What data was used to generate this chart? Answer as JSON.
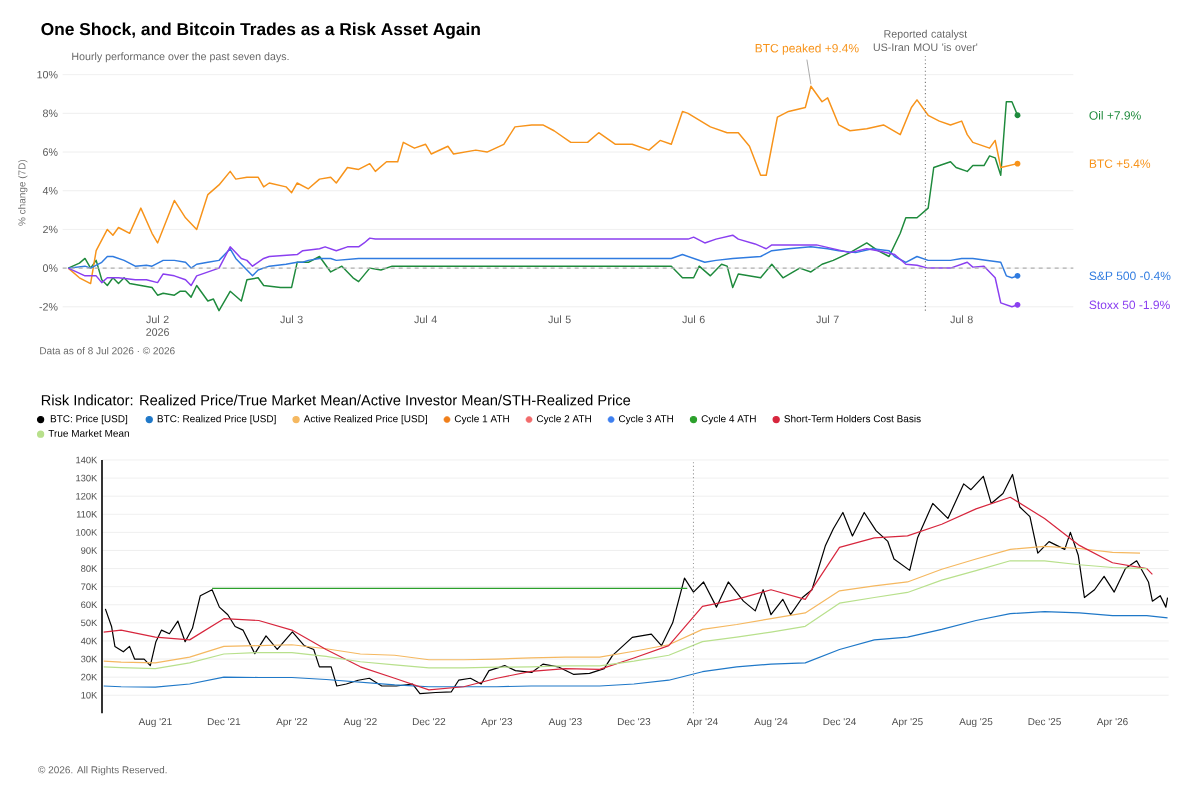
{
  "chart_data": [
    {
      "type": "line",
      "title": "One Shock, and Bitcoin Trades as a Risk Asset Again",
      "subtitle": "Hourly performance over the past seven days.",
      "ylabel": "% change (7D)",
      "xlim": [
        "2026-07-01T07:00",
        "2026-07-08T20:00"
      ],
      "ylim": [
        -2.2,
        10
      ],
      "xticks": [
        {
          "value": "2026-07-02",
          "label": "Jul 2 2026"
        },
        {
          "value": "2026-07-03",
          "label": "Jul 3"
        },
        {
          "value": "2026-07-04",
          "label": "Jul 4"
        },
        {
          "value": "2026-07-05",
          "label": "Jul 5"
        },
        {
          "value": "2026-07-06",
          "label": "Jul 6"
        },
        {
          "value": "2026-07-07",
          "label": "Jul 7"
        },
        {
          "value": "2026-07-08",
          "label": "Jul 8"
        }
      ],
      "yticks": [
        {
          "value": -2,
          "label": "-2%"
        },
        {
          "value": 0,
          "label": "0%"
        },
        {
          "value": 2,
          "label": "2%"
        },
        {
          "value": 4,
          "label": "4%"
        },
        {
          "value": 6,
          "label": "6%"
        },
        {
          "value": 8,
          "label": "8%"
        },
        {
          "value": 10,
          "label": "10%"
        }
      ],
      "grid": "y",
      "legend": false,
      "series": [
        {
          "name": "Oil +7.9%",
          "color": "#1e8a3c",
          "x": [
            "2026-07-01T08:00",
            "2026-07-01T10:00",
            "2026-07-01T11:00",
            "2026-07-01T12:00",
            "2026-07-01T13:00",
            "2026-07-01T14:00",
            "2026-07-01T15:00",
            "2026-07-01T16:00",
            "2026-07-01T17:00",
            "2026-07-01T18:00",
            "2026-07-01T19:00",
            "2026-07-01T21:00",
            "2026-07-01T23:00",
            "2026-07-02T00:00",
            "2026-07-02T01:00",
            "2026-07-02T03:00",
            "2026-07-02T04:00",
            "2026-07-02T05:00",
            "2026-07-02T06:00",
            "2026-07-02T07:00",
            "2026-07-02T09:00",
            "2026-07-02T10:00",
            "2026-07-02T11:00",
            "2026-07-02T13:00",
            "2026-07-02T15:00",
            "2026-07-02T16:00",
            "2026-07-02T18:00",
            "2026-07-02T19:00",
            "2026-07-02T22:00",
            "2026-07-03T00:00",
            "2026-07-03T01:00",
            "2026-07-03T03:00",
            "2026-07-03T05:00",
            "2026-07-03T07:00",
            "2026-07-03T09:00",
            "2026-07-03T11:00",
            "2026-07-03T12:00",
            "2026-07-03T14:00",
            "2026-07-03T16:00",
            "2026-07-03T18:00",
            "2026-07-05T20:00",
            "2026-07-05T22:00",
            "2026-07-06T00:00",
            "2026-07-06T01:00",
            "2026-07-06T03:00",
            "2026-07-06T05:00",
            "2026-07-06T06:00",
            "2026-07-06T07:00",
            "2026-07-06T08:00",
            "2026-07-06T10:00",
            "2026-07-06T12:00",
            "2026-07-06T14:00",
            "2026-07-06T16:00",
            "2026-07-06T19:00",
            "2026-07-06T21:00",
            "2026-07-06T23:00",
            "2026-07-07T01:00",
            "2026-07-07T04:00",
            "2026-07-07T07:00",
            "2026-07-07T09:00",
            "2026-07-07T11:00",
            "2026-07-07T13:00",
            "2026-07-07T14:00",
            "2026-07-07T16:00",
            "2026-07-07T18:00",
            "2026-07-07T19:00",
            "2026-07-07T20:00",
            "2026-07-07T22:00",
            "2026-07-07T23:00",
            "2026-07-08T01:00",
            "2026-07-08T02:00",
            "2026-07-08T04:00",
            "2026-07-08T05:00",
            "2026-07-08T06:00",
            "2026-07-08T07:00",
            "2026-07-08T08:00",
            "2026-07-08T09:00",
            "2026-07-08T10:00"
          ],
          "values": [
            0,
            0.26,
            0.5,
            0,
            0.4,
            -0.6,
            -0.9,
            -0.5,
            -0.8,
            -0.5,
            -0.8,
            -0.9,
            -1.0,
            -1.4,
            -1.3,
            -1.4,
            -1.2,
            -1.2,
            -1.5,
            -0.9,
            -1.7,
            -1.6,
            -2.2,
            -1.2,
            -1.7,
            -0.6,
            -0.5,
            -0.9,
            -1.0,
            -1.0,
            0.3,
            0.3,
            0.6,
            -0.2,
            0.1,
            -0.5,
            -0.7,
            0,
            -0.1,
            0.1,
            0.1,
            -0.5,
            -0.5,
            0.1,
            -0.4,
            0.2,
            0.1,
            -1.0,
            -0.3,
            -0.4,
            -0.5,
            0.2,
            -0.5,
            0.0,
            -0.2,
            0.2,
            0.4,
            0.8,
            1.3,
            0.9,
            0.6,
            1.8,
            2.6,
            2.6,
            3.1,
            5.2,
            5.3,
            5.5,
            5.2,
            5.0,
            5.3,
            5.3,
            5.8,
            5.7,
            4.8,
            8.6,
            8.6,
            7.9
          ]
        },
        {
          "name": "BTC +5.4%",
          "color": "#f7931a",
          "x": [
            "2026-07-01T08:00",
            "2026-07-01T10:00",
            "2026-07-01T12:00",
            "2026-07-01T13:00",
            "2026-07-01T15:00",
            "2026-07-01T16:00",
            "2026-07-01T17:00",
            "2026-07-01T19:00",
            "2026-07-01T21:00",
            "2026-07-01T23:00",
            "2026-07-02T00:00",
            "2026-07-02T03:00",
            "2026-07-02T05:00",
            "2026-07-02T07:00",
            "2026-07-02T09:00",
            "2026-07-02T11:00",
            "2026-07-02T13:00",
            "2026-07-02T14:00",
            "2026-07-02T16:00",
            "2026-07-02T18:00",
            "2026-07-02T19:00",
            "2026-07-02T20:00",
            "2026-07-02T23:00",
            "2026-07-03T00:00",
            "2026-07-03T01:00",
            "2026-07-03T03:00",
            "2026-07-03T05:00",
            "2026-07-03T07:00",
            "2026-07-03T08:00",
            "2026-07-03T10:00",
            "2026-07-03T12:00",
            "2026-07-03T14:00",
            "2026-07-03T15:00",
            "2026-07-03T17:00",
            "2026-07-03T19:00",
            "2026-07-03T20:00",
            "2026-07-03T22:00",
            "2026-07-04T00:00",
            "2026-07-04T01:00",
            "2026-07-04T04:00",
            "2026-07-04T05:00",
            "2026-07-04T09:00",
            "2026-07-04T11:00",
            "2026-07-04T14:00",
            "2026-07-04T16:00",
            "2026-07-04T19:00",
            "2026-07-04T21:00",
            "2026-07-04T23:00",
            "2026-07-05T02:00",
            "2026-07-05T05:00",
            "2026-07-05T07:00",
            "2026-07-05T08:00",
            "2026-07-05T10:00",
            "2026-07-05T13:00",
            "2026-07-05T16:00",
            "2026-07-05T18:00",
            "2026-07-05T20:00",
            "2026-07-05T22:00",
            "2026-07-05T23:00",
            "2026-07-06T03:00",
            "2026-07-06T06:00",
            "2026-07-06T08:00",
            "2026-07-06T10:00",
            "2026-07-06T12:00",
            "2026-07-06T13:00",
            "2026-07-06T15:00",
            "2026-07-06T17:00",
            "2026-07-06T20:00",
            "2026-07-06T21:00",
            "2026-07-06T23:00",
            "2026-07-07T00:00",
            "2026-07-07T02:00",
            "2026-07-07T04:00",
            "2026-07-07T07:00",
            "2026-07-07T10:00",
            "2026-07-07T13:00",
            "2026-07-07T15:00",
            "2026-07-07T16:00",
            "2026-07-07T18:00",
            "2026-07-07T20:00",
            "2026-07-07T22:00",
            "2026-07-08T00:00",
            "2026-07-08T01:00",
            "2026-07-08T02:00",
            "2026-07-08T05:00",
            "2026-07-08T06:00",
            "2026-07-08T07:00",
            "2026-07-08T10:00"
          ],
          "values": [
            0,
            -0.5,
            -0.8,
            0.9,
            2.0,
            1.7,
            2.1,
            1.8,
            3.1,
            1.8,
            1.3,
            3.5,
            2.6,
            2.0,
            3.8,
            4.3,
            5.0,
            4.6,
            4.7,
            4.7,
            4.2,
            4.4,
            4.2,
            3.9,
            4.4,
            4.1,
            4.6,
            4.7,
            4.4,
            5.2,
            5.1,
            5.4,
            5.0,
            5.5,
            5.5,
            6.5,
            6.2,
            6.4,
            5.9,
            6.3,
            5.9,
            6.1,
            6.0,
            6.4,
            7.3,
            7.4,
            7.4,
            7.1,
            6.5,
            6.5,
            7.0,
            6.8,
            6.4,
            6.4,
            6.1,
            6.6,
            6.4,
            8.1,
            8.0,
            7.3,
            7.0,
            7.0,
            6.3,
            4.8,
            4.8,
            7.8,
            8.1,
            8.3,
            9.4,
            8.6,
            8.8,
            7.4,
            7.1,
            7.2,
            7.4,
            6.9,
            8.3,
            8.7,
            7.9,
            7.6,
            7.4,
            7.6,
            6.9,
            6.5,
            6.2,
            6.6,
            5.2,
            5.4
          ]
        },
        {
          "name": "S&P 500 -0.4%",
          "color": "#2f7be0",
          "x": [
            "2026-07-01T08:00",
            "2026-07-01T11:00",
            "2026-07-01T12:00",
            "2026-07-01T14:00",
            "2026-07-01T15:00",
            "2026-07-01T16:00",
            "2026-07-01T18:00",
            "2026-07-01T20:00",
            "2026-07-01T22:00",
            "2026-07-01T23:00",
            "2026-07-02T01:00",
            "2026-07-02T03:00",
            "2026-07-02T05:00",
            "2026-07-02T06:00",
            "2026-07-02T07:00",
            "2026-07-02T09:00",
            "2026-07-02T11:00",
            "2026-07-02T13:00",
            "2026-07-02T14:00",
            "2026-07-02T17:00",
            "2026-07-02T18:00",
            "2026-07-02T20:00",
            "2026-07-02T23:00",
            "2026-07-03T01:00",
            "2026-07-03T02:00",
            "2026-07-03T03:00",
            "2026-07-03T05:00",
            "2026-07-03T07:00",
            "2026-07-03T08:00",
            "2026-07-03T12:00",
            "2026-07-03T14:00",
            "2026-07-03T16:00",
            "2026-07-05T20:00",
            "2026-07-05T22:00",
            "2026-07-06T02:00",
            "2026-07-06T04:00",
            "2026-07-06T07:00",
            "2026-07-06T12:00",
            "2026-07-06T14:00",
            "2026-07-06T17:00",
            "2026-07-06T21:00",
            "2026-07-07T00:00",
            "2026-07-07T02:00",
            "2026-07-07T05:00",
            "2026-07-07T08:00",
            "2026-07-07T11:00",
            "2026-07-07T12:00",
            "2026-07-07T14:00",
            "2026-07-07T16:00",
            "2026-07-07T18:00",
            "2026-07-07T22:00",
            "2026-07-08T00:00",
            "2026-07-08T02:00",
            "2026-07-08T07:00",
            "2026-07-08T08:00",
            "2026-07-08T09:00",
            "2026-07-08T10:00"
          ],
          "values": [
            0,
            0.1,
            0,
            0.3,
            0.6,
            0.6,
            0.4,
            0.1,
            0.15,
            0.1,
            0.4,
            0.4,
            0.3,
            0.0,
            0.2,
            0.3,
            0.4,
            1.0,
            0.5,
            -0.4,
            -0.1,
            0.1,
            0.2,
            0.3,
            0.3,
            0.4,
            0.5,
            0.5,
            0.4,
            0.5,
            0.5,
            0.5,
            0.5,
            0.7,
            0.3,
            0.4,
            0.5,
            0.6,
            0.9,
            1.0,
            1.1,
            1.0,
            0.9,
            0.8,
            1.0,
            0.9,
            0.6,
            0.3,
            0.6,
            0.4,
            0.4,
            0.5,
            0.5,
            0.3,
            -0.4,
            -0.5,
            -0.4
          ]
        },
        {
          "name": "Stoxx 50 -1.9%",
          "color": "#8a3ff0",
          "x": [
            "2026-07-01T08:00",
            "2026-07-01T11:00",
            "2026-07-01T13:00",
            "2026-07-01T14:00",
            "2026-07-01T15:00",
            "2026-07-01T17:00",
            "2026-07-01T20:00",
            "2026-07-01T22:00",
            "2026-07-02T00:00",
            "2026-07-02T01:00",
            "2026-07-02T03:00",
            "2026-07-02T05:00",
            "2026-07-02T06:00",
            "2026-07-02T07:00",
            "2026-07-02T11:00",
            "2026-07-02T13:00",
            "2026-07-02T15:00",
            "2026-07-02T16:00",
            "2026-07-02T17:00",
            "2026-07-02T19:00",
            "2026-07-02T20:00",
            "2026-07-03T01:00",
            "2026-07-03T02:00",
            "2026-07-03T05:00",
            "2026-07-03T06:00",
            "2026-07-03T08:00",
            "2026-07-03T10:00",
            "2026-07-03T12:00",
            "2026-07-03T13:00",
            "2026-07-03T14:00",
            "2026-07-03T15:00",
            "2026-07-05T23:00",
            "2026-07-06T00:00",
            "2026-07-06T02:00",
            "2026-07-06T04:00",
            "2026-07-06T07:00",
            "2026-07-06T08:00",
            "2026-07-06T11:00",
            "2026-07-06T13:00",
            "2026-07-06T14:00",
            "2026-07-06T22:00",
            "2026-07-07T01:00",
            "2026-07-07T04:00",
            "2026-07-07T07:00",
            "2026-07-07T09:00",
            "2026-07-07T12:00",
            "2026-07-07T14:00",
            "2026-07-07T16:00",
            "2026-07-07T18:00",
            "2026-07-07T22:00",
            "2026-07-08T01:00",
            "2026-07-08T02:00",
            "2026-07-08T04:00",
            "2026-07-08T06:00",
            "2026-07-08T07:00",
            "2026-07-08T09:00",
            "2026-07-08T10:00"
          ],
          "values": [
            0,
            -0.4,
            -0.4,
            -0.75,
            -0.5,
            -0.5,
            -0.6,
            -0.6,
            -0.75,
            -0.3,
            -0.4,
            -0.6,
            -0.9,
            -0.4,
            0.0,
            1.1,
            0.5,
            0.4,
            0.1,
            0.5,
            0.6,
            0.7,
            0.9,
            1.0,
            1.1,
            0.9,
            1.1,
            1.1,
            1.3,
            1.55,
            1.5,
            1.5,
            1.6,
            1.3,
            1.5,
            1.7,
            1.5,
            1.25,
            1.0,
            1.2,
            1.2,
            1.0,
            0.8,
            1.0,
            0.9,
            0.7,
            0.2,
            0.15,
            0.0,
            0.0,
            0.3,
            0.05,
            0.1,
            -0.5,
            -1.8,
            -2.0,
            -1.9
          ]
        }
      ],
      "ref_lines": [
        {
          "axis": "y",
          "value": 0,
          "color": "#b0b0b0",
          "line_style": "dashed"
        },
        {
          "axis": "x",
          "value": "2026-07-07T17:30",
          "label": "Reported catalyst US-Iran MOU 'is over'",
          "color": "#707070",
          "line_style": "dotted"
        }
      ],
      "annotations": [
        {
          "text": "BTC peaked +9.4%",
          "x": "2026-07-06T21:00",
          "y": 9.4
        },
        "Data as of 8 Jul 2026 · © 2026"
      ]
    },
    {
      "type": "line",
      "title": "Risk Indicator: Realized Price/True Market Mean/Active Investor Mean/STH-Realized Price",
      "xlim": [
        "2021-04-28",
        "2026-07-10"
      ],
      "ylim": [
        0,
        140000
      ],
      "xticks": [
        {
          "value": "2021-08-01",
          "label": "Aug '21"
        },
        {
          "value": "2021-12-01",
          "label": "Dec '21"
        },
        {
          "value": "2022-04-01",
          "label": "Apr '22"
        },
        {
          "value": "2022-08-01",
          "label": "Aug '22"
        },
        {
          "value": "2022-12-01",
          "label": "Dec '22"
        },
        {
          "value": "2023-04-01",
          "label": "Apr '23"
        },
        {
          "value": "2023-08-01",
          "label": "Aug '23"
        },
        {
          "value": "2023-12-01",
          "label": "Dec '23"
        },
        {
          "value": "2024-04-01",
          "label": "Apr '24"
        },
        {
          "value": "2024-08-01",
          "label": "Aug '24"
        },
        {
          "value": "2024-12-01",
          "label": "Dec '24"
        },
        {
          "value": "2025-04-01",
          "label": "Apr '25"
        },
        {
          "value": "2025-08-01",
          "label": "Aug '25"
        },
        {
          "value": "2025-12-01",
          "label": "Dec '25"
        },
        {
          "value": "2026-04-01",
          "label": "Apr '26"
        }
      ],
      "yticks": [
        {
          "value": 10000,
          "label": "10K"
        },
        {
          "value": 20000,
          "label": "20K"
        },
        {
          "value": 30000,
          "label": "30K"
        },
        {
          "value": 40000,
          "label": "40K"
        },
        {
          "value": 50000,
          "label": "50K"
        },
        {
          "value": 60000,
          "label": "60K"
        },
        {
          "value": 70000,
          "label": "70K"
        },
        {
          "value": 80000,
          "label": "80K"
        },
        {
          "value": 90000,
          "label": "90K"
        },
        {
          "value": 100000,
          "label": "100K"
        },
        {
          "value": 110000,
          "label": "110K"
        },
        {
          "value": 120000,
          "label": "120K"
        },
        {
          "value": 130000,
          "label": "130K"
        },
        {
          "value": 140000,
          "label": "140K"
        }
      ],
      "grid": "y",
      "legend": "top",
      "series": [
        {
          "name": "BTC: Price [USD]",
          "color": "#000000",
          "x": [
            "2021-05-04",
            "2021-05-15",
            "2021-05-21",
            "2021-06-05",
            "2021-06-16",
            "2021-06-25",
            "2021-07-12",
            "2021-07-23",
            "2021-08-02",
            "2021-08-12",
            "2021-08-26",
            "2021-09-10",
            "2021-09-23",
            "2021-10-06",
            "2021-10-20",
            "2021-11-10",
            "2021-11-23",
            "2021-12-08",
            "2021-12-21",
            "2022-01-04",
            "2022-01-25",
            "2022-02-14",
            "2022-03-06",
            "2022-04-02",
            "2022-04-23",
            "2022-05-10",
            "2022-05-20",
            "2022-06-10",
            "2022-06-20",
            "2022-07-07",
            "2022-07-28",
            "2022-08-17",
            "2022-09-08",
            "2022-10-04",
            "2022-11-02",
            "2022-11-15",
            "2022-12-13",
            "2023-01-10",
            "2023-01-23",
            "2023-02-13",
            "2023-03-04",
            "2023-03-18",
            "2023-04-15",
            "2023-05-04",
            "2023-06-02",
            "2023-06-22",
            "2023-07-19",
            "2023-08-16",
            "2023-09-13",
            "2023-10-09",
            "2023-10-24",
            "2023-11-28",
            "2024-01-01",
            "2024-01-19",
            "2024-02-08",
            "2024-02-29",
            "2024-03-16",
            "2024-04-03",
            "2024-04-26",
            "2024-05-17",
            "2024-06-13",
            "2024-07-04",
            "2024-07-18",
            "2024-08-01",
            "2024-08-22",
            "2024-09-05",
            "2024-09-26",
            "2024-10-13",
            "2024-11-06",
            "2024-11-20",
            "2024-12-07",
            "2024-12-24",
            "2025-01-14",
            "2025-02-04",
            "2025-02-25",
            "2025-03-08",
            "2025-04-05",
            "2025-04-19",
            "2025-05-16",
            "2025-06-12",
            "2025-07-10",
            "2025-07-23",
            "2025-08-14",
            "2025-08-28",
            "2025-09-18",
            "2025-10-05",
            "2025-10-18",
            "2025-11-05",
            "2025-11-19",
            "2025-12-09",
            "2026-01-06",
            "2026-01-16",
            "2026-01-30",
            "2026-02-10",
            "2026-02-28",
            "2026-03-17",
            "2026-04-04",
            "2026-04-24",
            "2026-05-14",
            "2026-06-04",
            "2026-06-11",
            "2026-06-25",
            "2026-07-05",
            "2026-07-08"
          ],
          "values": [
            57700,
            48000,
            37000,
            34000,
            37000,
            30000,
            30000,
            26400,
            39600,
            46000,
            44000,
            51000,
            39600,
            47000,
            65000,
            68300,
            58700,
            54500,
            48000,
            46000,
            33000,
            42800,
            35300,
            45000,
            37400,
            35300,
            25700,
            25700,
            15100,
            16200,
            18300,
            19400,
            15100,
            15100,
            16200,
            10900,
            11500,
            11900,
            18300,
            19400,
            16200,
            23600,
            26400,
            23600,
            22600,
            27200,
            25700,
            21500,
            22100,
            24700,
            32000,
            42000,
            43800,
            37400,
            50000,
            74700,
            67000,
            72600,
            58700,
            72600,
            62000,
            56600,
            68300,
            54500,
            63000,
            54500,
            64000,
            68300,
            92800,
            102000,
            111000,
            98000,
            111000,
            101000,
            95000,
            85300,
            79000,
            97000,
            116000,
            107700,
            126800,
            123600,
            131000,
            116000,
            121500,
            132000,
            114000,
            108700,
            88500,
            94900,
            90600,
            100000,
            87400,
            64000,
            68300,
            75700,
            67000,
            80000,
            84300,
            72600,
            62000,
            65000,
            58700,
            64000
          ]
        },
        {
          "name": "BTC: Realized Price [USD]",
          "color": "#1f78c8",
          "x": [
            "2021-05-01",
            "2021-06-01",
            "2021-08-01",
            "2021-10-01",
            "2021-12-01",
            "2022-02-01",
            "2022-04-01",
            "2022-06-01",
            "2022-08-01",
            "2022-10-01",
            "2022-12-01",
            "2023-02-01",
            "2023-04-01",
            "2023-06-01",
            "2023-08-01",
            "2023-10-01",
            "2023-12-01",
            "2024-02-01",
            "2024-04-01",
            "2024-06-01",
            "2024-08-01",
            "2024-10-01",
            "2024-12-01",
            "2025-02-01",
            "2025-04-01",
            "2025-06-01",
            "2025-08-01",
            "2025-10-01",
            "2025-12-01",
            "2026-02-01",
            "2026-04-01",
            "2026-06-01",
            "2026-07-08"
          ],
          "values": [
            15100,
            14700,
            14500,
            16200,
            20000,
            19800,
            19800,
            18700,
            17200,
            15700,
            14700,
            14700,
            14700,
            15100,
            15100,
            15100,
            16200,
            18300,
            23000,
            25700,
            27200,
            27900,
            35300,
            40600,
            42100,
            46400,
            51300,
            55100,
            56200,
            55500,
            54000,
            54000,
            52800
          ]
        },
        {
          "name": "Active Realized Price [USD]",
          "color": "#f5b860",
          "x": [
            "2021-05-01",
            "2021-06-01",
            "2021-08-01",
            "2021-10-01",
            "2021-12-01",
            "2022-02-01",
            "2022-04-01",
            "2022-06-01",
            "2022-08-01",
            "2022-10-01",
            "2022-12-01",
            "2023-02-01",
            "2023-04-01",
            "2023-06-01",
            "2023-08-01",
            "2023-10-01",
            "2023-12-01",
            "2024-02-01",
            "2024-04-01",
            "2024-06-01",
            "2024-08-01",
            "2024-10-01",
            "2024-12-01",
            "2025-02-01",
            "2025-04-01",
            "2025-06-01",
            "2025-08-01",
            "2025-10-01",
            "2025-12-01",
            "2026-02-01",
            "2026-04-01",
            "2026-05-20"
          ],
          "values": [
            28900,
            28300,
            27900,
            31100,
            37000,
            37400,
            37900,
            35700,
            32800,
            32100,
            29600,
            29600,
            30000,
            30600,
            31100,
            31100,
            34300,
            37900,
            46400,
            49100,
            52300,
            55500,
            67700,
            70400,
            72600,
            79600,
            85300,
            90600,
            92300,
            91100,
            88900,
            88500
          ]
        },
        {
          "name": "Cycle 1 ATH",
          "color": "#f07f1a"
        },
        {
          "name": "Cycle 2 ATH",
          "color": "#f26b6b"
        },
        {
          "name": "Cycle 3 ATH",
          "color": "#3d7ff0"
        },
        {
          "name": "Cycle 4 ATH",
          "color": "#2ca02c",
          "x": [
            "2021-11-10",
            "2024-03-05"
          ],
          "values": [
            69000,
            69000
          ]
        },
        {
          "name": "Short-Term Holders Cost Basis",
          "color": "#d7263d",
          "x": [
            "2021-05-01",
            "2021-06-01",
            "2021-08-01",
            "2021-10-01",
            "2021-12-01",
            "2022-02-01",
            "2022-04-01",
            "2022-06-01",
            "2022-08-01",
            "2022-10-01",
            "2022-12-01",
            "2023-02-01",
            "2023-04-01",
            "2023-06-01",
            "2023-08-01",
            "2023-10-01",
            "2023-12-01",
            "2024-02-01",
            "2024-04-01",
            "2024-06-01",
            "2024-08-01",
            "2024-10-01",
            "2024-12-01",
            "2025-02-01",
            "2025-04-01",
            "2025-06-01",
            "2025-08-01",
            "2025-10-01",
            "2025-12-01",
            "2026-02-01",
            "2026-04-01",
            "2026-06-01",
            "2026-06-11"
          ],
          "values": [
            44900,
            46000,
            42100,
            40600,
            52300,
            51300,
            46000,
            35300,
            25700,
            19400,
            13000,
            14700,
            19400,
            23200,
            24700,
            24300,
            30600,
            37400,
            59100,
            63000,
            68300,
            63000,
            91700,
            97000,
            98100,
            104500,
            113000,
            119400,
            107700,
            92800,
            83200,
            80000,
            76800
          ]
        },
        {
          "name": "True Market Mean",
          "color": "#b8e08c",
          "x": [
            "2021-05-01",
            "2021-06-01",
            "2021-08-01",
            "2021-10-01",
            "2021-12-01",
            "2022-02-01",
            "2022-04-01",
            "2022-06-01",
            "2022-08-01",
            "2022-10-01",
            "2022-12-01",
            "2023-02-01",
            "2023-04-01",
            "2023-06-01",
            "2023-08-01",
            "2023-10-01",
            "2023-12-01",
            "2024-02-01",
            "2024-04-01",
            "2024-06-01",
            "2024-08-01",
            "2024-10-01",
            "2024-12-01",
            "2025-02-01",
            "2025-04-01",
            "2025-06-01",
            "2025-08-01",
            "2025-10-01",
            "2025-12-01",
            "2026-02-01",
            "2026-04-01",
            "2026-06-01"
          ],
          "values": [
            25700,
            25300,
            24700,
            27900,
            32800,
            33600,
            33600,
            31500,
            28500,
            26800,
            25100,
            25100,
            25500,
            25700,
            26200,
            26200,
            28900,
            32100,
            39600,
            42100,
            44900,
            48100,
            60900,
            64000,
            66800,
            73600,
            78900,
            84300,
            84300,
            82100,
            80600,
            80000
          ]
        }
      ],
      "ref_lines": [
        {
          "axis": "x",
          "value": "2024-03-16",
          "color": "#9a9a9a",
          "line_style": "dotted"
        }
      ],
      "annotations": [
        "© 2026. All Rights Reserved."
      ]
    }
  ]
}
